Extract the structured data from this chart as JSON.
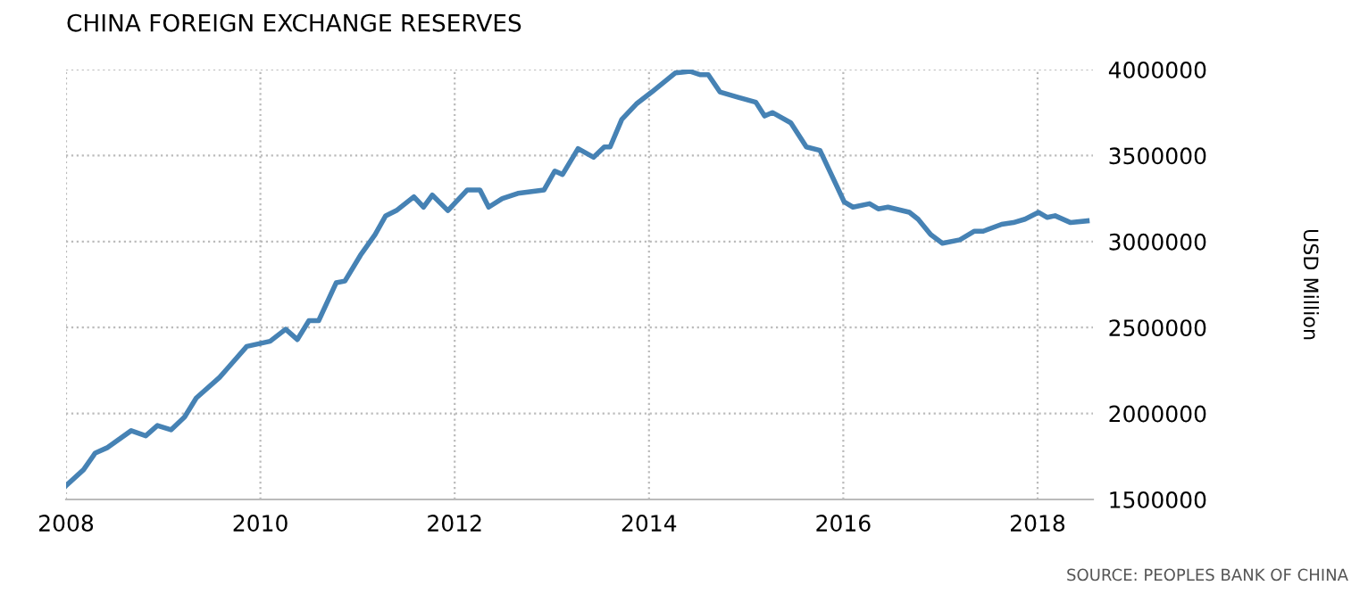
{
  "chart_data": {
    "type": "line",
    "title": "CHINA FOREIGN EXCHANGE RESERVES",
    "ylabel": "USD Million",
    "annotations": [
      "SOURCE: PEOPLES BANK OF CHINA"
    ],
    "x": [
      2008.0,
      2008.18,
      2008.3,
      2008.42,
      2008.67,
      2008.82,
      2008.94,
      2009.08,
      2009.22,
      2009.34,
      2009.58,
      2009.86,
      2010.1,
      2010.26,
      2010.38,
      2010.5,
      2010.6,
      2010.78,
      2010.87,
      2011.03,
      2011.18,
      2011.29,
      2011.4,
      2011.58,
      2011.68,
      2011.77,
      2011.93,
      2012.13,
      2012.26,
      2012.35,
      2012.49,
      2012.65,
      2012.92,
      2013.03,
      2013.11,
      2013.27,
      2013.43,
      2013.54,
      2013.6,
      2013.72,
      2013.87,
      2014.03,
      2014.27,
      2014.42,
      2014.53,
      2014.61,
      2014.73,
      2014.91,
      2015.1,
      2015.19,
      2015.27,
      2015.46,
      2015.62,
      2015.76,
      2016.01,
      2016.1,
      2016.27,
      2016.36,
      2016.46,
      2016.68,
      2016.77,
      2016.9,
      2017.02,
      2017.2,
      2017.35,
      2017.44,
      2017.63,
      2017.75,
      2017.87,
      2018.01,
      2018.1,
      2018.18,
      2018.34,
      2018.51
    ],
    "series": [
      {
        "color": "#4682b4",
        "values": [
          1580000,
          1673000,
          1770000,
          1800000,
          1900000,
          1870000,
          1930000,
          1905000,
          1980000,
          2090000,
          2210000,
          2390000,
          2420000,
          2490000,
          2430000,
          2540000,
          2540000,
          2760000,
          2770000,
          2920000,
          3040000,
          3150000,
          3180000,
          3260000,
          3200000,
          3270000,
          3180000,
          3300000,
          3300000,
          3200000,
          3250000,
          3280000,
          3300000,
          3410000,
          3390000,
          3540000,
          3490000,
          3550000,
          3550000,
          3710000,
          3800000,
          3870000,
          3980000,
          3990000,
          3970000,
          3970000,
          3870000,
          3840000,
          3810000,
          3730000,
          3750000,
          3690000,
          3550000,
          3530000,
          3230000,
          3200000,
          3220000,
          3190000,
          3200000,
          3170000,
          3130000,
          3040000,
          2990000,
          3010000,
          3060000,
          3060000,
          3100000,
          3110000,
          3130000,
          3170000,
          3140000,
          3150000,
          3110000,
          3120000
        ]
      }
    ],
    "xlim": [
      2008,
      2018.57
    ],
    "xticks": [
      2008,
      2010,
      2012,
      2014,
      2016,
      2018
    ],
    "ylim": [
      1500000,
      4000000
    ],
    "yticks": [
      1500000,
      2000000,
      2500000,
      3000000,
      3500000,
      4000000
    ],
    "grid": true,
    "line_style": "solid",
    "marker": "none",
    "legend": false
  }
}
